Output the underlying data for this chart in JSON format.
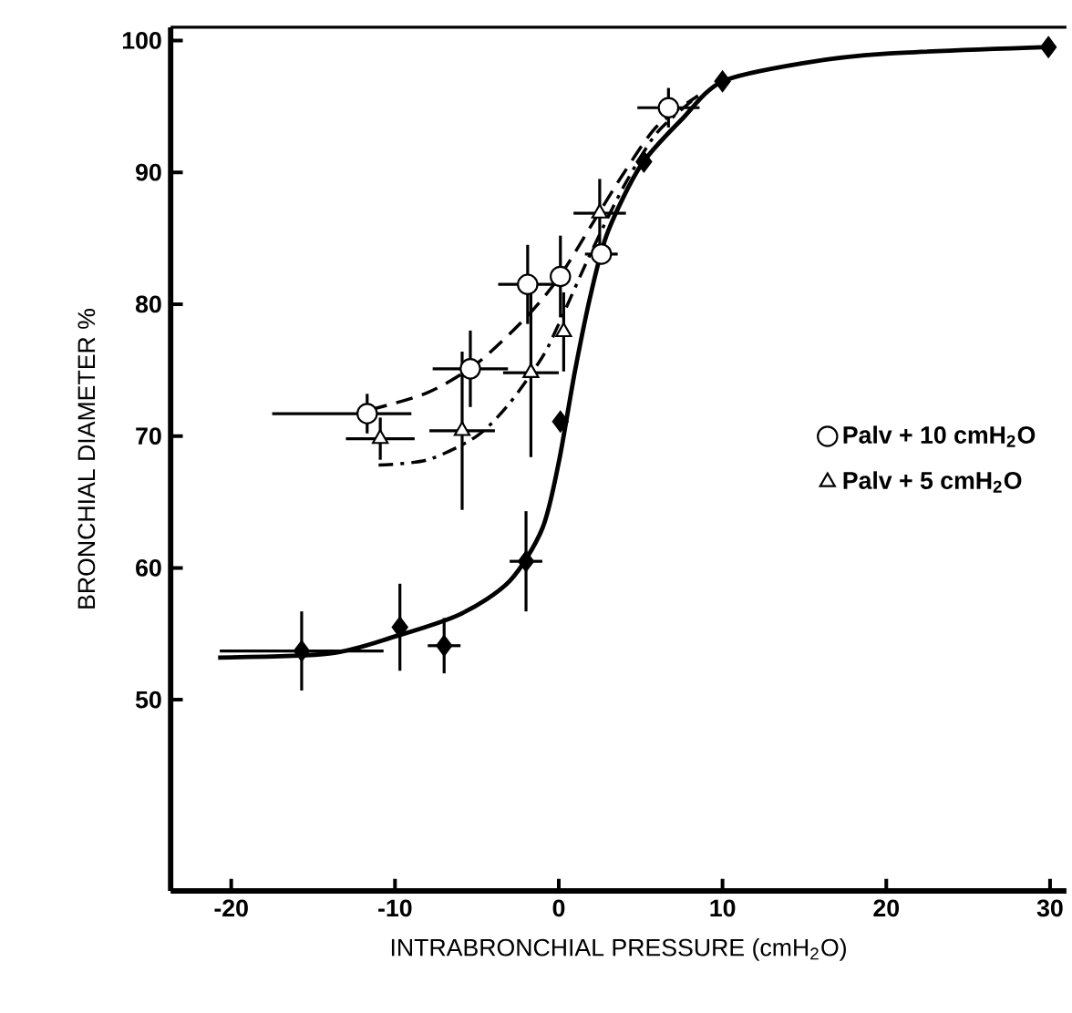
{
  "chart_data": {
    "type": "scatter",
    "xlabel": "INTRABRONCHIAL PRESSURE (cmH$_{2}$O)",
    "ylabel": "BRONCHIAL DIAMETER %",
    "xlim": [
      -23.7,
      31
    ],
    "ylim": [
      35.5,
      101
    ],
    "xticks": [
      -20,
      -10,
      0,
      10,
      20,
      30
    ],
    "yticks": [
      50,
      60,
      70,
      80,
      90,
      100
    ],
    "grid": false,
    "legend": "right",
    "series": [
      {
        "type": "line",
        "color": "#000000",
        "marker": "none",
        "line_style": "solid",
        "x": [
          -20.8,
          -14,
          -10,
          -6,
          -3,
          -1,
          0,
          1,
          2,
          3,
          5,
          7.5,
          10,
          15,
          20,
          29.9
        ],
        "values": [
          53.2,
          53.5,
          54.8,
          56.5,
          59,
          63,
          68,
          75,
          81,
          85.5,
          90.5,
          94,
          96.9,
          98.3,
          99,
          99.5
        ]
      },
      {
        "type": "line",
        "color": "#000000",
        "marker": "none",
        "line_style": "dashed",
        "x": [
          -11.5,
          -8,
          -5,
          -2,
          0,
          2,
          4,
          6,
          8.5
        ],
        "values": [
          72,
          73.3,
          75.5,
          79,
          82,
          86,
          90,
          93.5,
          95.8
        ]
      },
      {
        "type": "line",
        "color": "#000000",
        "marker": "none",
        "line_style": "dashdot",
        "x": [
          -11,
          -8,
          -5,
          -3,
          -1,
          0,
          2,
          4,
          6,
          8.5
        ],
        "values": [
          67.8,
          68.2,
          70,
          72.5,
          76,
          78.5,
          84,
          89,
          93,
          95.8
        ]
      },
      {
        "color": "#000000",
        "marker": "diamond",
        "x": [
          -15.7,
          -9.7,
          -7,
          -2,
          0.1,
          5.2,
          10,
          29.9
        ],
        "values": [
          53.7,
          55.5,
          54.1,
          60.5,
          71.1,
          90.8,
          96.9,
          99.5
        ],
        "errors": [
          3,
          3.3,
          2.1,
          3.8,
          null,
          null,
          null,
          null
        ],
        "xerrors": [
          5,
          null,
          1,
          1,
          null,
          null,
          null,
          null
        ]
      },
      {
        "name": "Palv + 10 cmH$_{2}$O",
        "color": "#000000",
        "marker": "circle",
        "x": [
          -11.7,
          -5.4,
          -1.9,
          0.1,
          2.6,
          6.7
        ],
        "values": [
          71.7,
          75.1,
          81.5,
          82.1,
          83.8,
          94.9
        ],
        "errors": [
          1.5,
          2.9,
          3,
          3.1,
          null,
          1.5
        ],
        "xerrors": [
          [
            -17.5,
            -9
          ],
          2.3,
          1.8,
          null,
          1,
          1.9
        ]
      },
      {
        "name": "Palv + 5 cmH$_{2}$O",
        "color": "#000000",
        "marker": "triangle",
        "x": [
          -10.9,
          -5.9,
          -1.7,
          0.3,
          2.5
        ],
        "values": [
          69.8,
          70.4,
          74.8,
          77.9,
          86.9
        ],
        "errors": [
          1.6,
          6,
          6.4,
          3,
          2.6
        ],
        "xerrors": [
          2.1,
          2,
          1.7,
          null,
          1.6
        ]
      }
    ]
  }
}
